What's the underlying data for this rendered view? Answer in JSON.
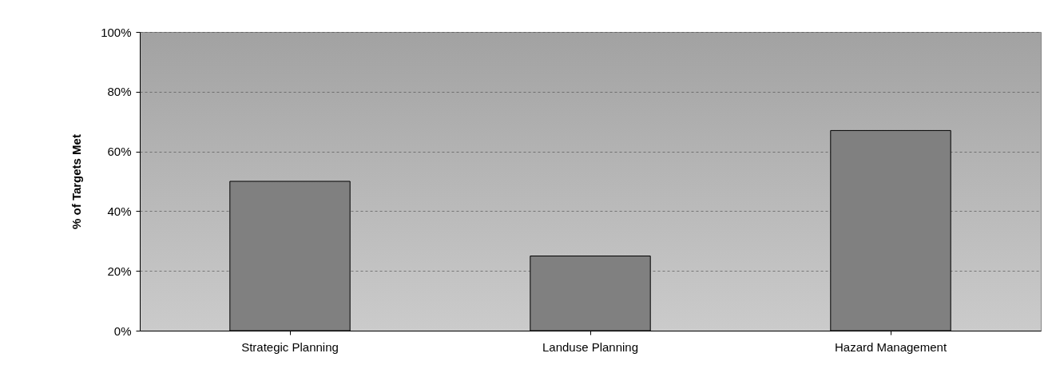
{
  "chart_data": {
    "type": "bar",
    "ylabel": "% of Targets Met",
    "categories": [
      "Strategic Planning",
      "Landuse Planning",
      "Hazard Management"
    ],
    "values": [
      50,
      25,
      67
    ],
    "color": "#808080",
    "ylim": [
      0,
      100
    ],
    "yticks": [
      {
        "value": 0,
        "label": "0%"
      },
      {
        "value": 20,
        "label": "20%"
      },
      {
        "value": 40,
        "label": "40%"
      },
      {
        "value": 60,
        "label": "60%"
      },
      {
        "value": 80,
        "label": "80%"
      },
      {
        "value": 100,
        "label": "100%"
      }
    ],
    "grid": "y"
  }
}
